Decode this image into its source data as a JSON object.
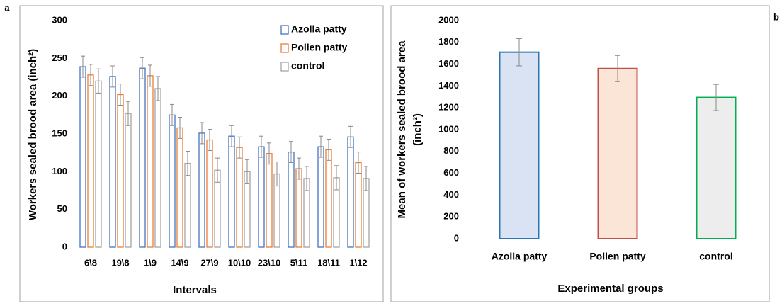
{
  "chart_data": [
    {
      "type": "grouped_bar",
      "panel_label": "a",
      "ylabel": "Workers sealed brood area (inch²)",
      "xlabel": "Intervals",
      "categories": [
        "6\\8",
        "19\\8",
        "1\\9",
        "14\\9",
        "27\\9",
        "10\\10",
        "23\\10",
        "5\\11",
        "18\\11",
        "1\\12"
      ],
      "series": [
        {
          "name": "Azolla patty",
          "color": "#4472c4",
          "values": [
            239,
            226,
            237,
            175,
            151,
            147,
            133,
            126,
            133,
            146
          ],
          "errors": [
            14,
            14,
            14,
            14,
            14,
            14,
            14,
            14,
            14,
            14
          ]
        },
        {
          "name": "Pollen patty",
          "color": "#ed7d31",
          "values": [
            228,
            202,
            227,
            158,
            142,
            132,
            124,
            104,
            129,
            112
          ],
          "errors": [
            14,
            14,
            14,
            14,
            14,
            14,
            14,
            14,
            14,
            14
          ]
        },
        {
          "name": "control",
          "color": "#a5a5a5",
          "values": [
            220,
            177,
            210,
            111,
            102,
            100,
            97,
            91,
            92,
            91
          ],
          "errors": [
            16,
            16,
            16,
            16,
            16,
            16,
            16,
            16,
            16,
            16
          ]
        }
      ],
      "ylim": [
        0,
        300
      ],
      "yticks": [
        0,
        50,
        100,
        150,
        200,
        250,
        300
      ],
      "legend": "top-right"
    },
    {
      "type": "bar",
      "panel_label": "b",
      "ylabel": [
        "Mean of workers sealed brood area",
        "(inch²)"
      ],
      "xlabel": "Experimental groups",
      "categories": [
        "Azolla patty",
        "Pollen patty",
        "control"
      ],
      "values": [
        1710,
        1560,
        1295
      ],
      "errors": [
        125,
        120,
        120
      ],
      "fills": [
        "#dae3f3",
        "#fbe5d6",
        "#ededed"
      ],
      "colors": [
        "#2e75b6",
        "#c0504d",
        "#00b050"
      ],
      "ylim": [
        0,
        2000
      ],
      "yticks": [
        0,
        200,
        400,
        600,
        800,
        1000,
        1200,
        1400,
        1600,
        1800,
        2000
      ]
    }
  ]
}
